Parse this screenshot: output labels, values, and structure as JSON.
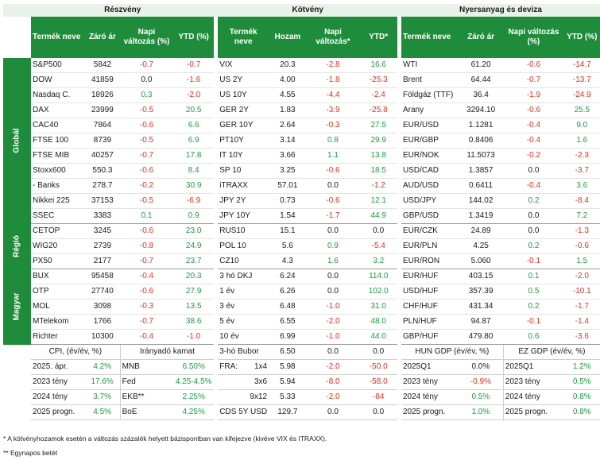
{
  "sections": {
    "equity": "Részvény",
    "bonds": "Kötvény",
    "fx": "Nyersanyag és deviza"
  },
  "headers": {
    "equity": [
      "Termék neve",
      "Záró ár",
      "Napi változás (%)",
      "YTD (%)"
    ],
    "bonds": [
      "Termék neve",
      "Hozam",
      "Napi változás*",
      "YTD*"
    ],
    "fx": [
      "Termék neve",
      "Záró ár",
      "Napi változás (%)",
      "YTD (%)"
    ]
  },
  "groups": [
    {
      "label": "Globál",
      "rows": [
        {
          "e": [
            "S&P500",
            "5842",
            "-0.7",
            "-0.7"
          ],
          "b": [
            "VIX",
            "20.3",
            "-2.8",
            "16.6"
          ],
          "f": [
            "WTI",
            "61.20",
            "-0.6",
            "-14.7"
          ]
        },
        {
          "e": [
            "DOW",
            "41859",
            "0.0",
            "-1.6"
          ],
          "b": [
            "US 2Y",
            "4.00",
            "-1.8",
            "-25.3"
          ],
          "f": [
            "Brent",
            "64.44",
            "-0.7",
            "-13.7"
          ]
        },
        {
          "e": [
            "Nasdaq C.",
            "18926",
            "0.3",
            "-2.0"
          ],
          "b": [
            "US 10Y",
            "4.55",
            "-4.4",
            "-2.4"
          ],
          "f": [
            "Földgáz (TTF)",
            "36.4",
            "-1.9",
            "-24.9"
          ]
        },
        {
          "e": [
            "DAX",
            "23999",
            "-0.5",
            "20.5"
          ],
          "b": [
            "GER 2Y",
            "1.83",
            "-3.9",
            "-25.8"
          ],
          "f": [
            "Arany",
            "3294.10",
            "-0.6",
            "25.5"
          ]
        },
        {
          "e": [
            "CAC40",
            "7864",
            "-0.6",
            "6.6"
          ],
          "b": [
            "GER 10Y",
            "2.64",
            "-0.3",
            "27.5"
          ],
          "f": [
            "EUR/USD",
            "1.1281",
            "-0.4",
            "9.0"
          ]
        },
        {
          "e": [
            "FTSE 100",
            "8739",
            "-0.5",
            "6.9"
          ],
          "b": [
            "PT10Y",
            "3.14",
            "0.8",
            "29.9"
          ],
          "f": [
            "EUR/GBP",
            "0.8406",
            "-0.4",
            "1.6"
          ]
        },
        {
          "e": [
            "FTSE MIB",
            "40257",
            "-0.7",
            "17.8"
          ],
          "b": [
            "IT 10Y",
            "3.66",
            "1.1",
            "13.8"
          ],
          "f": [
            "EUR/NOK",
            "11.5073",
            "-0.2",
            "-2.3"
          ]
        },
        {
          "e": [
            "Stoxx600",
            "550.3",
            "-0.6",
            "8.4"
          ],
          "b": [
            "SP 10",
            "3.25",
            "-0.6",
            "18.5"
          ],
          "f": [
            "USD/CAD",
            "1.3857",
            "0.0",
            "-3.7"
          ]
        },
        {
          "e": [
            " - Banks",
            "278.7",
            "-0.2",
            "30.9"
          ],
          "b": [
            "iTRAXX",
            "57.01",
            "0.0",
            "-1.2"
          ],
          "f": [
            "AUD/USD",
            "0.6411",
            "-0.4",
            "3.6"
          ]
        },
        {
          "e": [
            "Nikkei 225",
            "37153",
            "-0.5",
            "-6.9"
          ],
          "b": [
            "JPY 2Y",
            "0.73",
            "-0.6",
            "12.1"
          ],
          "f": [
            "USD/JPY",
            "144.02",
            "0.2",
            "-8.4"
          ]
        },
        {
          "e": [
            "SSEC",
            "3383",
            "0.1",
            "0.9"
          ],
          "b": [
            "JPY 10Y",
            "1.54",
            "-1.7",
            "44.9"
          ],
          "f": [
            "GBP/USD",
            "1.3419",
            "0.0",
            "7.2"
          ]
        }
      ]
    },
    {
      "label": "Régió",
      "rows": [
        {
          "e": [
            "CETOP",
            "3245",
            "-0.6",
            "23.0"
          ],
          "b": [
            "RUS10",
            "15.1",
            "0.0",
            "0.0"
          ],
          "f": [
            "EUR/CZK",
            "24.89",
            "0.0",
            "-1.3"
          ]
        },
        {
          "e": [
            "WIG20",
            "2739",
            "-0.8",
            "24.9"
          ],
          "b": [
            "POL 10",
            "5.6",
            "0.9",
            "-5.4"
          ],
          "f": [
            "EUR/PLN",
            "4.25",
            "0.2",
            "-0.6"
          ]
        },
        {
          "e": [
            "PX50",
            "2177",
            "-0.7",
            "23.7"
          ],
          "b": [
            "CZ10",
            "4.3",
            "1.6",
            "3.2"
          ],
          "f": [
            "EUR/RON",
            "5.060",
            "-0.1",
            "1.5"
          ]
        }
      ]
    },
    {
      "label": "Magyar",
      "rows": [
        {
          "e": [
            "BUX",
            "95458",
            "-0.4",
            "20.3"
          ],
          "b": [
            "3 hó DKJ",
            "6.24",
            "0.0",
            "114.0"
          ],
          "f": [
            "EUR/HUF",
            "403.15",
            "0.1",
            "-2.0"
          ]
        },
        {
          "e": [
            "OTP",
            "27740",
            "-0.6",
            "27.9"
          ],
          "b": [
            "1 év",
            "6.26",
            "0.0",
            "102.0"
          ],
          "f": [
            "USD/HUF",
            "357.39",
            "0.5",
            "-10.1"
          ]
        },
        {
          "e": [
            "MOL",
            "3098",
            "-0.3",
            "13.5"
          ],
          "b": [
            "3 év",
            "6.48",
            "-1.0",
            "31.0"
          ],
          "f": [
            "CHF/HUF",
            "431.34",
            "0.2",
            "-1.7"
          ]
        },
        {
          "e": [
            "MTelekom",
            "1766",
            "-0.7",
            "38.6"
          ],
          "b": [
            "5 év",
            "6.55",
            "-2.0",
            "48.0"
          ],
          "f": [
            "PLN/HUF",
            "94.87",
            "-0.1",
            "-1.4"
          ]
        },
        {
          "e": [
            "Richter",
            "10300",
            "-0.4",
            "-1.0"
          ],
          "b": [
            "10 év",
            "6.99",
            "-1.0",
            "44.0"
          ],
          "f": [
            "GBP/HUF",
            "479.80",
            "0.6",
            "-3.6"
          ]
        }
      ]
    }
  ],
  "memo": {
    "label": "Memo",
    "cpi_title": "CPI, (év/év, %)",
    "rate_title": "Irányadó kamat",
    "bubor_title": "3-hó Bubor",
    "bubor_value": "6.50",
    "bubor_change": "0.0",
    "bubor_ytd": "0.0",
    "hun_gdp_title": "HUN GDP (év/év, %)",
    "ez_gdp_title": "EZ GDP (év/év, %)",
    "rows": [
      {
        "cpi": [
          "2025. ápr.",
          "4.2%"
        ],
        "rate": [
          "MNB",
          "6.50%"
        ],
        "fra": [
          "FRA:",
          "1x4",
          "5.98",
          "-2.0",
          "-50.0"
        ],
        "hun": [
          "2025Q1",
          "0.0%"
        ],
        "ez": [
          "2025Q1",
          "1.2%"
        ]
      },
      {
        "cpi": [
          "2023 tény",
          "17.6%"
        ],
        "rate": [
          "Fed",
          "4.25-4.5%"
        ],
        "fra": [
          "",
          "3x6",
          "5.94",
          "-8.0",
          "-58.0"
        ],
        "hun": [
          "2023 tény",
          "-0.9%"
        ],
        "ez": [
          "2023 tény",
          "0.5%"
        ]
      },
      {
        "cpi": [
          "2024 tény",
          "3.7%"
        ],
        "rate": [
          "EKB**",
          "2.25%"
        ],
        "fra": [
          "",
          "9x12",
          "5.33",
          "-2.0",
          "-84"
        ],
        "hun": [
          "2024 tény",
          "0.5%"
        ],
        "ez": [
          "2024 tény",
          "0.8%"
        ]
      },
      {
        "cpi": [
          "2025 progn.",
          "4.5%"
        ],
        "rate": [
          "BoE",
          "4.25%"
        ],
        "fra": [
          "CDS 5Y USD",
          "",
          "129.7",
          "0.0",
          "0.0"
        ],
        "hun": [
          "2025 progn.",
          "1.0%"
        ],
        "ez": [
          "2025 progn.",
          "0.8%"
        ]
      }
    ]
  },
  "footnotes": [
    "* A kötvényhozamok esetén a változás százalék helyett bázispontban van kifejezve (kivéve VIX és ITRAXX).",
    "** Egynapos betét"
  ],
  "colors": {
    "header_green": "#1f8c3c",
    "positive": "#1f9c3e",
    "negative": "#e0301e",
    "section_bg": "#e9f2e9"
  }
}
